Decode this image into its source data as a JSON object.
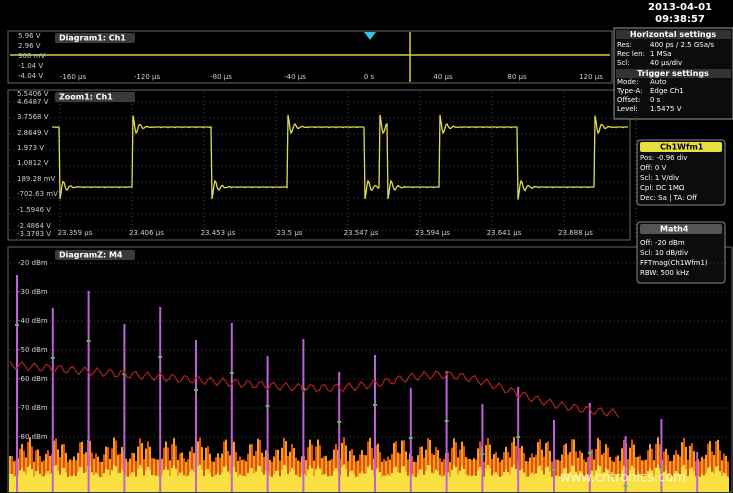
{
  "header": {
    "date": "2013-04-01",
    "time": "09:38:57"
  },
  "diagram1": {
    "title": "Diagram1: Ch1",
    "y_labels": [
      "5.96 V",
      "2.96 V",
      "900 mV",
      "-1.04 V",
      "-4.04 V"
    ],
    "x_labels": [
      "-160 µs",
      "-120 µs",
      "-80 µs",
      "-40 µs",
      "0 s",
      "40 µs",
      "80 µs",
      "120 µs"
    ]
  },
  "horizontal_settings": {
    "title": "Horizontal settings",
    "rows": [
      [
        "Res:",
        "400 ps / 2.5 GSa/s"
      ],
      [
        "Rec len:",
        "1 MSa"
      ],
      [
        "Scl:",
        "40 µs/div"
      ]
    ]
  },
  "trigger_settings": {
    "title": "Trigger settings",
    "rows": [
      [
        "Mode:",
        "Auto"
      ],
      [
        "Type-A:",
        "Edge  Ch1"
      ],
      [
        "Offset:",
        "0 s"
      ],
      [
        "Level:",
        "1.5475 V"
      ]
    ]
  },
  "zoom1": {
    "title": "Zoom1: Ch1",
    "y_labels": [
      "5.5406 V",
      "4.6487 V",
      "3.7568 V",
      "2.8649 V",
      "1.973 V",
      "1.0812 V",
      "189.28 mV",
      "-702.63 mV",
      "-1.5946 V",
      "-2.4864 V",
      "-3.3783 V"
    ],
    "x_labels": [
      "23.359 µs",
      "23.406 µs",
      "23.453 µs",
      "23.5 µs",
      "23.547 µs",
      "23.594 µs",
      "23.641 µs",
      "23.688 µs"
    ]
  },
  "ch1_wfm": {
    "title": "Ch1Wfm1",
    "rows": [
      "Pos: -0.96 div",
      "Off: 0 V",
      "Scl: 1 V/div",
      "Cpl: DC 1MΩ",
      "Dec: Sa | TA: Off"
    ]
  },
  "math4": {
    "title": "Math4",
    "rows": [
      "Off: -20 dBm",
      "Scl: 10 dB/div",
      "FFTmag(Ch1Wfm1)",
      "RBW: 500 kHz"
    ]
  },
  "diagramz": {
    "title": "DiagramZ: M4",
    "y_labels": [
      "-20 dBm",
      "-30 dBm",
      "-40 dBm",
      "-50 dBm",
      "-60 dBm",
      "-70 dBm",
      "-80 dBm"
    ]
  },
  "watermark": "www.cntronics.com"
}
